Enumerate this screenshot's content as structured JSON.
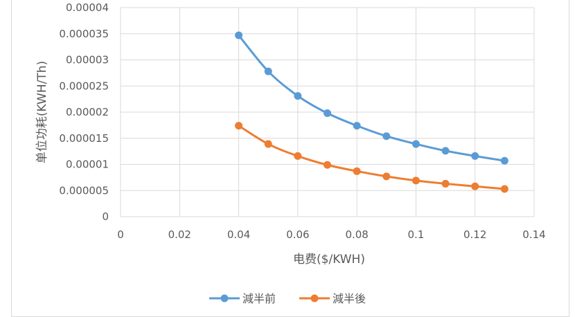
{
  "chart_data": {
    "type": "scatter",
    "title": "",
    "xlabel": "电费($/KWH)",
    "ylabel": "单位功耗(KWH/Th)",
    "xlim": [
      0,
      0.14
    ],
    "ylim": [
      0,
      4e-05
    ],
    "x_ticks": [
      "0",
      "0.02",
      "0.04",
      "0.06",
      "0.08",
      "0.1",
      "0.12",
      "0.14"
    ],
    "y_ticks": [
      "0",
      "0.000005",
      "0.00001",
      "0.000015",
      "0.00002",
      "0.000025",
      "0.00003",
      "0.000035",
      "0.00004"
    ],
    "grid": true,
    "legend_position": "bottom",
    "x": [
      0.04,
      0.05,
      0.06,
      0.07,
      0.08,
      0.09,
      0.1,
      0.11,
      0.12,
      0.13
    ],
    "series": [
      {
        "name": "減半前",
        "color": "#5b9bd5",
        "values": [
          3.47e-05,
          2.78e-05,
          2.31e-05,
          1.98e-05,
          1.74e-05,
          1.54e-05,
          1.39e-05,
          1.26e-05,
          1.16e-05,
          1.07e-05
        ]
      },
      {
        "name": "減半後",
        "color": "#ed7d31",
        "values": [
          1.74e-05,
          1.39e-05,
          1.16e-05,
          9.9e-06,
          8.7e-06,
          7.7e-06,
          6.9e-06,
          6.3e-06,
          5.8e-06,
          5.3e-06
        ]
      }
    ]
  }
}
